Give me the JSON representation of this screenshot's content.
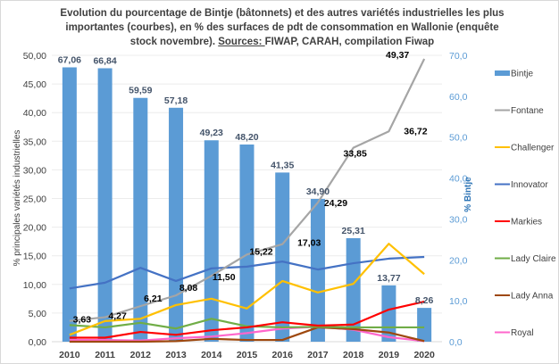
{
  "chart_data": {
    "type": "bar+line",
    "title_parts": {
      "main": "Evolution du pourcentage de Bintje (bâtonnets) et des autres variétés industrielles les plus importantes (courbes), en % des surfaces de pdt de consommation en Wallonie (enquête stock novembre). ",
      "sources_label": "Sources: ",
      "sources": "FIWAP, CARAH, compilation Fiwap"
    },
    "categories": [
      "2010",
      "2011",
      "2012",
      "2013",
      "2014",
      "2015",
      "2016",
      "2017",
      "2018",
      "2019",
      "2020"
    ],
    "left_axis": {
      "label": "% principales variétés industrielles",
      "range": [
        0,
        50
      ],
      "ticks": [
        "0,00",
        "5,00",
        "10,00",
        "15,00",
        "20,00",
        "25,00",
        "30,00",
        "35,00",
        "40,00",
        "45,00",
        "50,00"
      ]
    },
    "right_axis": {
      "label": "% Bintje",
      "range": [
        0,
        70
      ],
      "ticks": [
        "0,0",
        "10,0",
        "20,0",
        "30,0",
        "40,0",
        "50,0",
        "60,0",
        "70,0"
      ]
    },
    "grid": true,
    "legend_position": "right",
    "bars": {
      "name": "Bintje",
      "axis": "right",
      "color": "#5b9bd5",
      "values": [
        67.06,
        66.84,
        59.59,
        57.18,
        49.23,
        48.2,
        41.35,
        34.9,
        25.31,
        13.77,
        8.26
      ],
      "labels": [
        "67,06",
        "66,84",
        "59,59",
        "57,18",
        "49,23",
        "48,20",
        "41,35",
        "34,90",
        "25,31",
        "13,77",
        "8,26"
      ]
    },
    "series": [
      {
        "name": "Fontane",
        "axis": "left",
        "color": "#a5a5a5",
        "values": [
          3.63,
          4.27,
          6.21,
          8.08,
          11.5,
          15.22,
          17.03,
          24.29,
          33.85,
          36.72,
          49.37
        ],
        "labels": [
          "3,63",
          "4,27",
          "6,21",
          "8,08",
          "11,50",
          "15,22",
          "17,03",
          "24,29",
          "33,85",
          "36,72",
          "49,37"
        ]
      },
      {
        "name": "Challenger",
        "axis": "left",
        "color": "#ffc000",
        "values": [
          1.2,
          3.6,
          4.0,
          6.4,
          7.5,
          5.8,
          10.6,
          8.6,
          10.1,
          17.1,
          11.8
        ]
      },
      {
        "name": "Innovator",
        "axis": "left",
        "color": "#4472c4",
        "values": [
          9.3,
          10.3,
          12.9,
          10.6,
          12.8,
          13.1,
          14.0,
          12.6,
          13.7,
          14.5,
          14.8
        ]
      },
      {
        "name": "Markies",
        "axis": "left",
        "color": "#ff0000",
        "values": [
          0.7,
          0.7,
          1.7,
          1.2,
          2.0,
          2.5,
          3.4,
          2.8,
          3.0,
          5.6,
          7.0
        ]
      },
      {
        "name": "Lady Claire",
        "axis": "left",
        "color": "#70ad47",
        "values": [
          2.9,
          2.5,
          3.3,
          2.3,
          4.0,
          2.7,
          2.5,
          2.6,
          2.5,
          2.5,
          2.5
        ]
      },
      {
        "name": "Lady Anna",
        "axis": "left",
        "color": "#9e480e",
        "values": [
          0.0,
          0.0,
          0.0,
          0.1,
          0.5,
          0.3,
          0.3,
          2.5,
          2.2,
          1.6,
          0.1
        ]
      },
      {
        "name": "Royal",
        "axis": "left",
        "color": "#ff66cc",
        "values": [
          0.3,
          0.3,
          0.2,
          0.6,
          0.9,
          1.5,
          2.3,
          2.6,
          2.1,
          0.8,
          0.1
        ]
      }
    ]
  }
}
